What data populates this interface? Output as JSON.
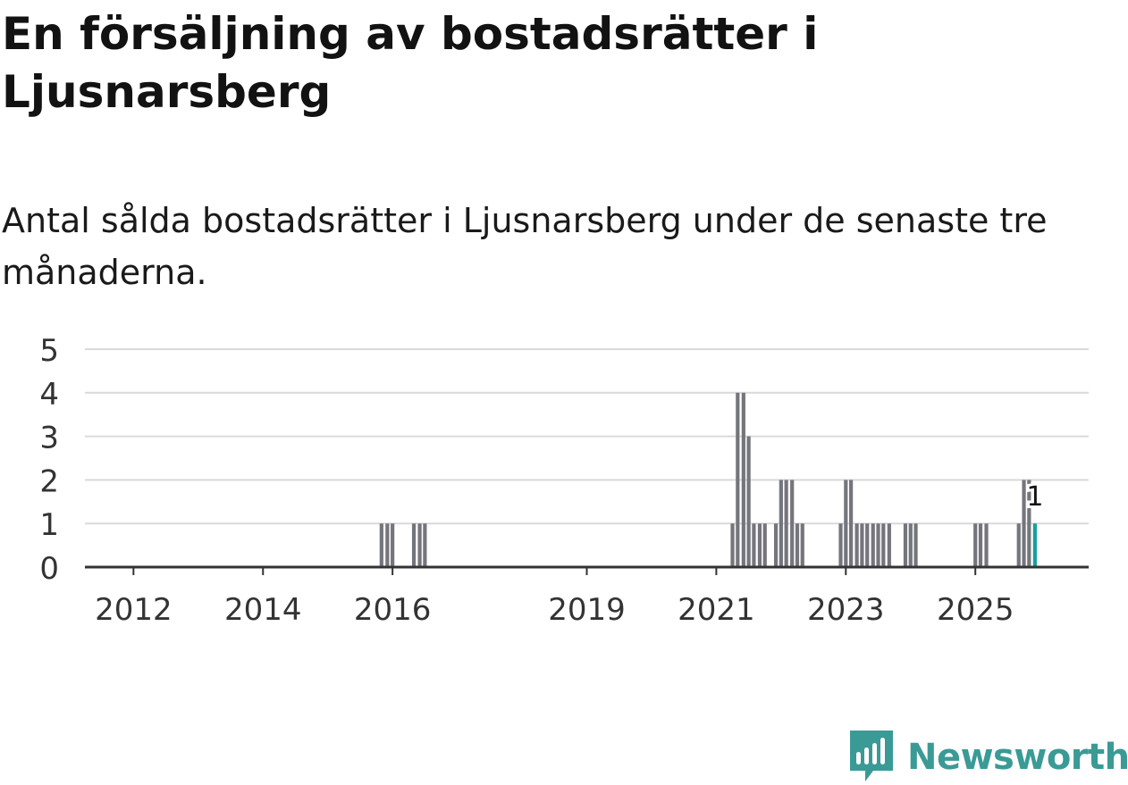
{
  "title": "En försäljning av bostadsrätter i Ljusnarsberg",
  "subtitle": "Antal sålda bostadsrätter i Ljusnarsberg under de senaste tre månaderna.",
  "brand": "Newsworthy",
  "colors": {
    "bar": "#75757d",
    "highlight": "#16a09a",
    "grid": "#d9d9d9",
    "axis": "#333333",
    "brand": "#3a9a96"
  },
  "chart_data": {
    "type": "bar",
    "title": "En försäljning av bostadsrätter i Ljusnarsberg",
    "xlabel": "",
    "ylabel": "",
    "ylim": [
      0,
      5
    ],
    "yticks": [
      0,
      1,
      2,
      3,
      4,
      5
    ],
    "xticks": [
      {
        "label": "2012",
        "year": 2012
      },
      {
        "label": "2014",
        "year": 2014
      },
      {
        "label": "2016",
        "year": 2016
      },
      {
        "label": "2019",
        "year": 2019
      },
      {
        "label": "2021",
        "year": 2021
      },
      {
        "label": "2023",
        "year": 2023
      },
      {
        "label": "2025",
        "year": 2025
      }
    ],
    "series": [
      {
        "name": "Antal sålda bostadsrätter",
        "points": [
          {
            "t": 2015.83,
            "v": 1
          },
          {
            "t": 2015.92,
            "v": 1
          },
          {
            "t": 2016.0,
            "v": 1
          },
          {
            "t": 2016.33,
            "v": 1
          },
          {
            "t": 2016.42,
            "v": 1
          },
          {
            "t": 2016.5,
            "v": 1
          },
          {
            "t": 2021.25,
            "v": 1
          },
          {
            "t": 2021.33,
            "v": 4
          },
          {
            "t": 2021.42,
            "v": 4
          },
          {
            "t": 2021.5,
            "v": 3
          },
          {
            "t": 2021.58,
            "v": 1
          },
          {
            "t": 2021.67,
            "v": 1
          },
          {
            "t": 2021.75,
            "v": 1
          },
          {
            "t": 2021.92,
            "v": 1
          },
          {
            "t": 2022.0,
            "v": 2
          },
          {
            "t": 2022.08,
            "v": 2
          },
          {
            "t": 2022.17,
            "v": 2
          },
          {
            "t": 2022.25,
            "v": 1
          },
          {
            "t": 2022.33,
            "v": 1
          },
          {
            "t": 2022.92,
            "v": 1
          },
          {
            "t": 2023.0,
            "v": 2
          },
          {
            "t": 2023.08,
            "v": 2
          },
          {
            "t": 2023.17,
            "v": 1
          },
          {
            "t": 2023.25,
            "v": 1
          },
          {
            "t": 2023.33,
            "v": 1
          },
          {
            "t": 2023.42,
            "v": 1
          },
          {
            "t": 2023.5,
            "v": 1
          },
          {
            "t": 2023.58,
            "v": 1
          },
          {
            "t": 2023.67,
            "v": 1
          },
          {
            "t": 2023.92,
            "v": 1
          },
          {
            "t": 2024.0,
            "v": 1
          },
          {
            "t": 2024.08,
            "v": 1
          },
          {
            "t": 2025.0,
            "v": 1
          },
          {
            "t": 2025.08,
            "v": 1
          },
          {
            "t": 2025.17,
            "v": 1
          },
          {
            "t": 2025.67,
            "v": 1
          },
          {
            "t": 2025.75,
            "v": 2
          },
          {
            "t": 2025.83,
            "v": 2
          }
        ]
      }
    ],
    "highlight": {
      "t": 2025.92,
      "v": 1,
      "label": "1"
    },
    "x_domain": [
      2011.25,
      2026.75
    ]
  }
}
